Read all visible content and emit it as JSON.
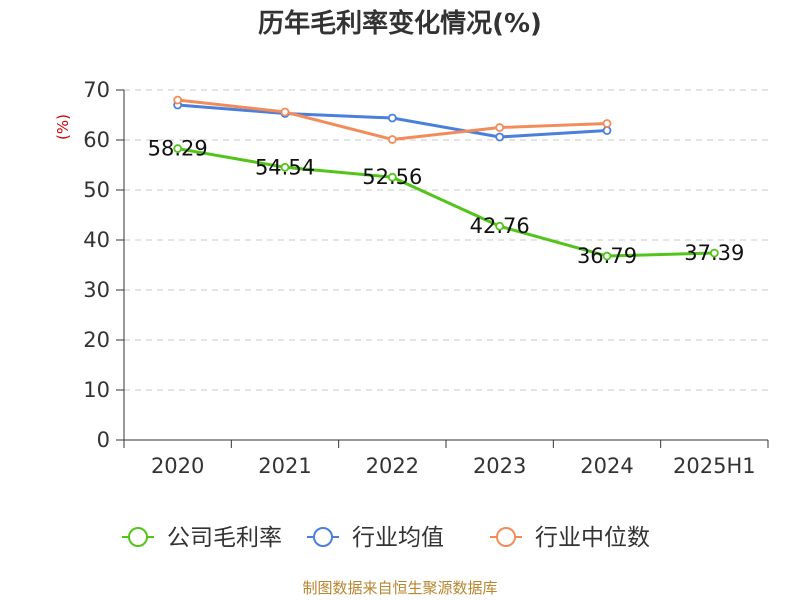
{
  "chart_data": {
    "type": "line",
    "title": "历年毛利率变化情况(%)",
    "ylabel": "(%)",
    "xlabel": "",
    "categories": [
      "2020",
      "2021",
      "2022",
      "2023",
      "2024",
      "2025H1"
    ],
    "ylim": [
      0,
      70
    ],
    "yticks": [
      0,
      10,
      20,
      30,
      40,
      50,
      60,
      70
    ],
    "grid": true,
    "legend_position": "bottom",
    "series": [
      {
        "name": "公司毛利率",
        "color": "#52c41a",
        "values": [
          58.29,
          54.54,
          52.56,
          42.76,
          36.79,
          37.39
        ],
        "labels": [
          "58.29",
          "54.54",
          "52.56",
          "42.76",
          "36.79",
          "37.39"
        ]
      },
      {
        "name": "行业均值",
        "color": "#4a7fdc",
        "values": [
          67.0,
          65.3,
          64.4,
          60.6,
          61.9,
          null
        ]
      },
      {
        "name": "行业中位数",
        "color": "#f28c5a",
        "values": [
          68.0,
          65.6,
          60.1,
          62.5,
          63.3,
          null
        ]
      }
    ]
  },
  "footer": {
    "source": "制图数据来自恒生聚源数据库"
  }
}
